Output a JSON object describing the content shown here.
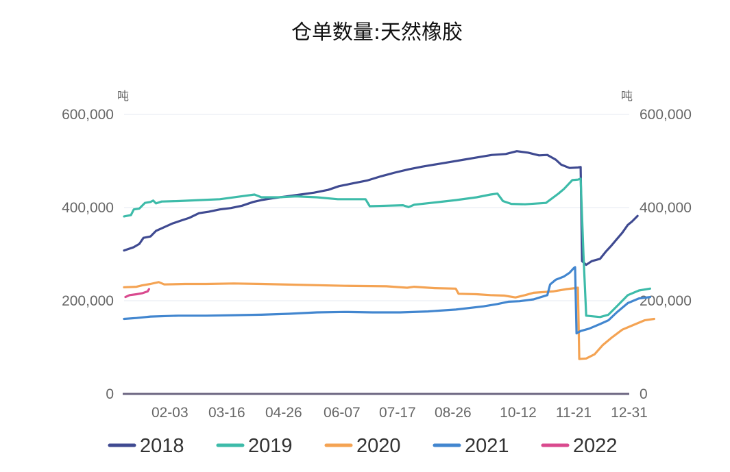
{
  "chart_data": {
    "type": "line",
    "title": "仓单数量:天然橡胶",
    "y_unit_left": "吨",
    "y_unit_right": "吨",
    "ylim": [
      0,
      600000
    ],
    "y_ticks": [
      0,
      200000,
      400000,
      600000
    ],
    "y_tick_labels": [
      "0",
      "200,000",
      "400,000",
      "600,000"
    ],
    "x_range": [
      1,
      365
    ],
    "x_tick_labels": [
      "02-03",
      "03-16",
      "04-26",
      "06-07",
      "07-17",
      "08-26",
      "10-12",
      "11-21",
      "12-31"
    ],
    "x_tick_days": [
      34,
      75,
      116,
      158,
      198,
      238,
      285,
      325,
      365
    ],
    "grid": true,
    "legend_position": "bottom",
    "series": [
      {
        "name": "2018",
        "color": "#3f4a91",
        "points": [
          [
            1,
            308000
          ],
          [
            8,
            315000
          ],
          [
            12,
            322000
          ],
          [
            15,
            335000
          ],
          [
            20,
            338000
          ],
          [
            24,
            350000
          ],
          [
            30,
            358000
          ],
          [
            36,
            366000
          ],
          [
            42,
            372000
          ],
          [
            48,
            378000
          ],
          [
            55,
            388000
          ],
          [
            62,
            391000
          ],
          [
            70,
            396000
          ],
          [
            78,
            399000
          ],
          [
            86,
            404000
          ],
          [
            94,
            412000
          ],
          [
            100,
            416000
          ],
          [
            108,
            420000
          ],
          [
            118,
            424000
          ],
          [
            128,
            428000
          ],
          [
            138,
            432000
          ],
          [
            148,
            438000
          ],
          [
            156,
            446000
          ],
          [
            166,
            452000
          ],
          [
            176,
            458000
          ],
          [
            186,
            467000
          ],
          [
            196,
            475000
          ],
          [
            206,
            482000
          ],
          [
            216,
            488000
          ],
          [
            226,
            493000
          ],
          [
            236,
            498000
          ],
          [
            246,
            503000
          ],
          [
            256,
            508000
          ],
          [
            266,
            513000
          ],
          [
            276,
            515000
          ],
          [
            284,
            521000
          ],
          [
            292,
            518000
          ],
          [
            300,
            512000
          ],
          [
            306,
            513000
          ],
          [
            312,
            503000
          ],
          [
            316,
            492000
          ],
          [
            322,
            485000
          ],
          [
            328,
            486000
          ],
          [
            330,
            487000
          ],
          [
            331,
            285000
          ],
          [
            334,
            277000
          ],
          [
            338,
            285000
          ],
          [
            344,
            290000
          ],
          [
            348,
            305000
          ],
          [
            352,
            318000
          ],
          [
            356,
            332000
          ],
          [
            360,
            346000
          ],
          [
            364,
            363000
          ],
          [
            367,
            370000
          ],
          [
            371,
            382000
          ]
        ]
      },
      {
        "name": "2019",
        "color": "#3dbba9",
        "points": [
          [
            1,
            381000
          ],
          [
            6,
            384000
          ],
          [
            8,
            396000
          ],
          [
            12,
            398000
          ],
          [
            16,
            410000
          ],
          [
            20,
            412000
          ],
          [
            22,
            415000
          ],
          [
            24,
            409000
          ],
          [
            28,
            413000
          ],
          [
            40,
            414000
          ],
          [
            55,
            416000
          ],
          [
            70,
            418000
          ],
          [
            85,
            424000
          ],
          [
            95,
            428000
          ],
          [
            100,
            422000
          ],
          [
            112,
            422000
          ],
          [
            125,
            424000
          ],
          [
            140,
            422000
          ],
          [
            155,
            418000
          ],
          [
            165,
            418000
          ],
          [
            175,
            418000
          ],
          [
            178,
            403000
          ],
          [
            190,
            404000
          ],
          [
            202,
            405000
          ],
          [
            206,
            401000
          ],
          [
            210,
            406000
          ],
          [
            222,
            410000
          ],
          [
            240,
            416000
          ],
          [
            255,
            422000
          ],
          [
            265,
            428000
          ],
          [
            270,
            430000
          ],
          [
            274,
            414000
          ],
          [
            280,
            408000
          ],
          [
            290,
            407000
          ],
          [
            305,
            410000
          ],
          [
            314,
            430000
          ],
          [
            318,
            440000
          ],
          [
            324,
            459000
          ],
          [
            328,
            460000
          ],
          [
            330,
            462000
          ],
          [
            332,
            300000
          ],
          [
            334,
            168000
          ],
          [
            344,
            165000
          ],
          [
            350,
            170000
          ],
          [
            356,
            188000
          ],
          [
            364,
            212000
          ],
          [
            372,
            222000
          ],
          [
            380,
            226000
          ]
        ]
      },
      {
        "name": "2020",
        "color": "#f4a353",
        "points": [
          [
            1,
            229000
          ],
          [
            10,
            230000
          ],
          [
            14,
            233000
          ],
          [
            20,
            236000
          ],
          [
            26,
            240000
          ],
          [
            30,
            235000
          ],
          [
            45,
            236000
          ],
          [
            60,
            236000
          ],
          [
            80,
            237000
          ],
          [
            100,
            236000
          ],
          [
            130,
            234000
          ],
          [
            160,
            232000
          ],
          [
            190,
            231000
          ],
          [
            205,
            228000
          ],
          [
            210,
            230000
          ],
          [
            225,
            227000
          ],
          [
            240,
            226000
          ],
          [
            242,
            215000
          ],
          [
            255,
            214000
          ],
          [
            265,
            212000
          ],
          [
            275,
            211000
          ],
          [
            283,
            207000
          ],
          [
            290,
            212000
          ],
          [
            296,
            217000
          ],
          [
            310,
            220000
          ],
          [
            320,
            225000
          ],
          [
            326,
            227000
          ],
          [
            328,
            228000
          ],
          [
            329,
            75000
          ],
          [
            334,
            76000
          ],
          [
            340,
            85000
          ],
          [
            346,
            105000
          ],
          [
            352,
            120000
          ],
          [
            360,
            138000
          ],
          [
            368,
            148000
          ],
          [
            376,
            158000
          ],
          [
            383,
            161000
          ]
        ]
      },
      {
        "name": "2021",
        "color": "#4286cf",
        "points": [
          [
            1,
            161000
          ],
          [
            10,
            163000
          ],
          [
            20,
            166000
          ],
          [
            40,
            168000
          ],
          [
            60,
            168000
          ],
          [
            80,
            169000
          ],
          [
            100,
            170000
          ],
          [
            120,
            172000
          ],
          [
            140,
            175000
          ],
          [
            160,
            176000
          ],
          [
            180,
            175000
          ],
          [
            200,
            175000
          ],
          [
            220,
            177000
          ],
          [
            240,
            181000
          ],
          [
            260,
            188000
          ],
          [
            270,
            193000
          ],
          [
            278,
            198000
          ],
          [
            286,
            199000
          ],
          [
            296,
            203000
          ],
          [
            306,
            212000
          ],
          [
            308,
            235000
          ],
          [
            312,
            245000
          ],
          [
            318,
            252000
          ],
          [
            322,
            260000
          ],
          [
            325,
            270000
          ],
          [
            326,
            272000
          ],
          [
            327,
            130000
          ],
          [
            330,
            135000
          ],
          [
            336,
            140000
          ],
          [
            344,
            150000
          ],
          [
            350,
            158000
          ],
          [
            356,
            175000
          ],
          [
            364,
            195000
          ],
          [
            372,
            205000
          ],
          [
            380,
            208000
          ]
        ]
      },
      {
        "name": "2022",
        "color": "#d94a8e",
        "points": [
          [
            2,
            208000
          ],
          [
            5,
            212000
          ],
          [
            10,
            214000
          ],
          [
            14,
            216000
          ],
          [
            18,
            220000
          ],
          [
            19,
            225000
          ]
        ]
      }
    ]
  }
}
